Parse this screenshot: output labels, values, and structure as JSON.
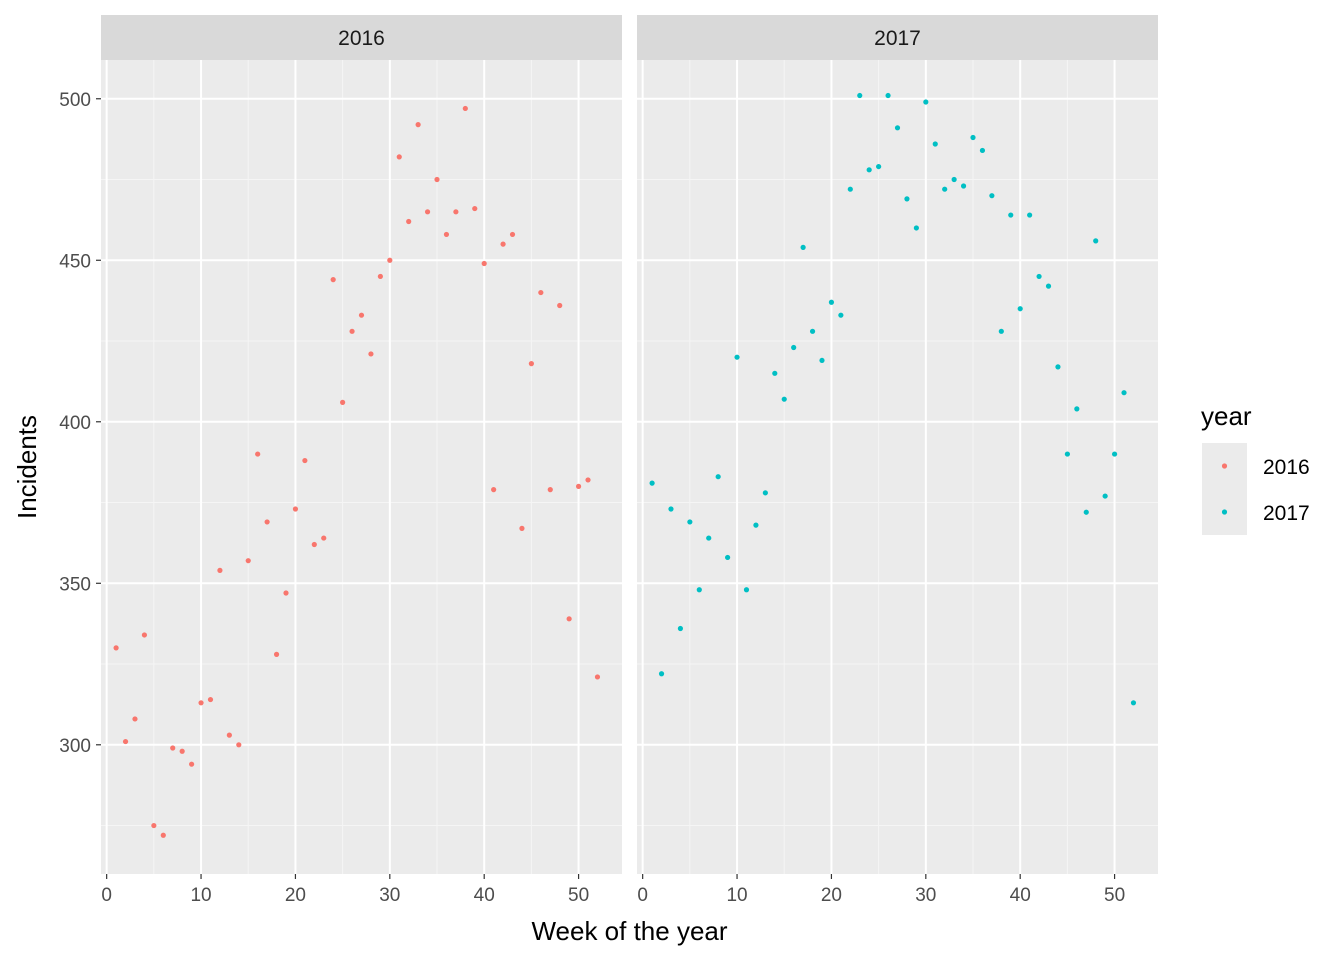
{
  "chart_data": {
    "type": "scatter",
    "facet_by": "year",
    "xlabel": "Week of the year",
    "ylabel": "Incidents",
    "xlim": [
      -0.6,
      54.6
    ],
    "ylim": [
      260,
      512
    ],
    "x_ticks": [
      0,
      10,
      20,
      30,
      40,
      50
    ],
    "y_ticks": [
      300,
      350,
      400,
      450,
      500
    ],
    "legend": {
      "title": "year",
      "position": "right",
      "entries": [
        {
          "label": "2016",
          "color": "#F8766D"
        },
        {
          "label": "2017",
          "color": "#00BFC4"
        }
      ]
    },
    "panels": [
      {
        "label": "2016",
        "color": "#F8766D",
        "x": [
          1,
          2,
          3,
          4,
          5,
          6,
          7,
          8,
          9,
          10,
          11,
          12,
          13,
          14,
          15,
          16,
          17,
          18,
          19,
          20,
          21,
          22,
          23,
          24,
          25,
          26,
          27,
          28,
          29,
          30,
          31,
          32,
          33,
          34,
          35,
          36,
          37,
          38,
          39,
          40,
          41,
          42,
          43,
          44,
          45,
          46,
          47,
          48,
          49,
          50,
          51,
          52
        ],
        "y": [
          330,
          301,
          308,
          334,
          275,
          272,
          299,
          298,
          294,
          313,
          314,
          354,
          303,
          300,
          357,
          390,
          369,
          328,
          347,
          373,
          388,
          362,
          364,
          444,
          406,
          428,
          433,
          421,
          445,
          450,
          482,
          462,
          492,
          465,
          475,
          458,
          465,
          497,
          466,
          449,
          379,
          455,
          458,
          367,
          418,
          440,
          379,
          436,
          339,
          380,
          382,
          321
        ]
      },
      {
        "label": "2017",
        "color": "#00BFC4",
        "x": [
          1,
          2,
          3,
          4,
          5,
          6,
          7,
          8,
          9,
          10,
          11,
          12,
          13,
          14,
          15,
          16,
          17,
          18,
          19,
          20,
          21,
          22,
          23,
          24,
          25,
          26,
          27,
          28,
          29,
          30,
          31,
          32,
          33,
          34,
          35,
          36,
          37,
          38,
          39,
          40,
          41,
          42,
          43,
          44,
          45,
          46,
          47,
          48,
          49,
          50,
          51,
          52
        ],
        "y": [
          381,
          322,
          373,
          336,
          369,
          348,
          364,
          383,
          358,
          420,
          348,
          368,
          378,
          415,
          407,
          423,
          454,
          428,
          419,
          437,
          433,
          472,
          501,
          478,
          479,
          501,
          491,
          469,
          460,
          499,
          486,
          472,
          475,
          473,
          488,
          484,
          470,
          428,
          464,
          435,
          464,
          445,
          442,
          417,
          390,
          404,
          372,
          456,
          377,
          390,
          409,
          313
        ]
      }
    ]
  }
}
